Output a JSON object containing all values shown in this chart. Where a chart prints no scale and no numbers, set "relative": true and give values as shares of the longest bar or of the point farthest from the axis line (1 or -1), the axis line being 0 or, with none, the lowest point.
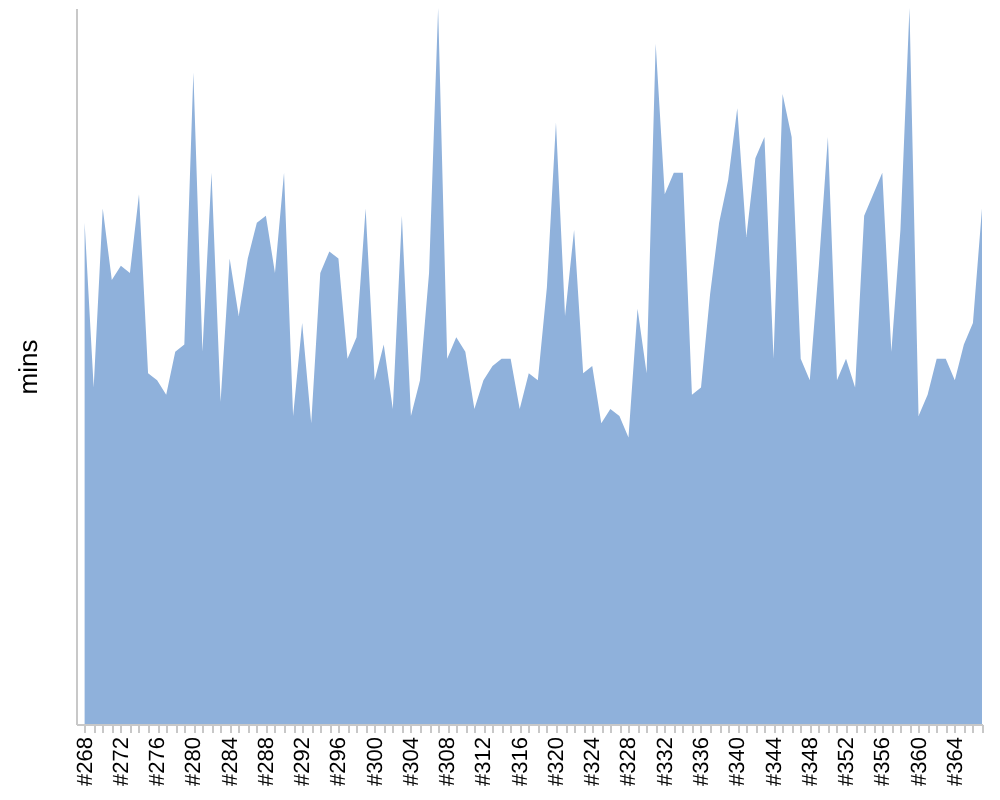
{
  "chart_data": {
    "type": "area",
    "ylabel": "mins",
    "color": "#8fb1db",
    "relative": true,
    "categories": [
      "#268",
      null,
      null,
      null,
      "#272",
      null,
      null,
      null,
      "#276",
      null,
      null,
      null,
      "#280",
      null,
      null,
      null,
      "#284",
      null,
      null,
      null,
      "#288",
      null,
      null,
      null,
      "#292",
      null,
      null,
      null,
      "#296",
      null,
      null,
      null,
      "#300",
      null,
      null,
      null,
      "#304",
      null,
      null,
      null,
      "#308",
      null,
      null,
      null,
      "#312",
      null,
      null,
      null,
      "#316",
      null,
      null,
      null,
      "#320",
      null,
      null,
      null,
      "#324",
      null,
      null,
      null,
      "#328",
      null,
      null,
      null,
      "#332",
      null,
      null,
      null,
      "#336",
      null,
      null,
      null,
      "#340",
      null,
      null,
      null,
      "#344",
      null,
      null,
      null,
      "#348",
      null,
      null,
      null,
      "#352",
      null,
      null,
      null,
      "#356",
      null,
      null,
      null,
      "#360",
      null,
      null,
      null,
      "#364",
      null,
      null,
      null
    ],
    "values": [
      0.7,
      0.47,
      0.72,
      0.62,
      0.64,
      0.63,
      0.74,
      0.49,
      0.48,
      0.46,
      0.52,
      0.53,
      0.91,
      0.52,
      0.77,
      0.45,
      0.65,
      0.57,
      0.65,
      0.7,
      0.71,
      0.63,
      0.77,
      0.43,
      0.56,
      0.42,
      0.63,
      0.66,
      0.65,
      0.51,
      0.54,
      0.72,
      0.48,
      0.53,
      0.44,
      0.71,
      0.43,
      0.48,
      0.63,
      1,
      0.51,
      0.54,
      0.52,
      0.44,
      0.48,
      0.5,
      0.51,
      0.51,
      0.44,
      0.49,
      0.48,
      0.61,
      0.84,
      0.57,
      0.69,
      0.49,
      0.5,
      0.42,
      0.44,
      0.43,
      0.4,
      0.58,
      0.49,
      0.95,
      0.74,
      0.77,
      0.77,
      0.46,
      0.47,
      0.6,
      0.7,
      0.76,
      0.86,
      0.68,
      0.79,
      0.82,
      0.51,
      0.88,
      0.82,
      0.51,
      0.48,
      0.64,
      0.82,
      0.48,
      0.51,
      0.47,
      0.71,
      0.74,
      0.77,
      0.52,
      0.69,
      1,
      0.43,
      0.46,
      0.51,
      0.51,
      0.48,
      0.53,
      0.56,
      0.72
    ]
  }
}
